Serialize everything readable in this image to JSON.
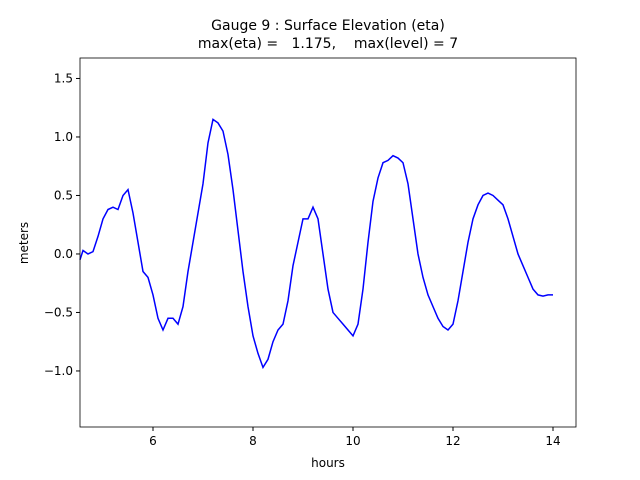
{
  "chart_data": {
    "type": "line",
    "title": "Gauge 9 : Surface Elevation (eta)",
    "subtitle": "max(eta) =   1.175,    max(level) = 7",
    "x_label": "hours",
    "y_label": "meters",
    "xlim": [
      4.54,
      14.46
    ],
    "ylim": [
      -1.479,
      1.675
    ],
    "xticks": [
      6,
      8,
      10,
      12,
      14
    ],
    "yticks": [
      {
        "value": -1.0,
        "label": "−1.0"
      },
      {
        "value": -0.5,
        "label": "−0.5"
      },
      {
        "value": 0.0,
        "label": "0.0"
      },
      {
        "value": 0.5,
        "label": "0.5"
      },
      {
        "value": 1.0,
        "label": "1.0"
      },
      {
        "value": 1.5,
        "label": "1.5"
      }
    ],
    "x": [
      4.54,
      4.6,
      4.7,
      4.8,
      4.9,
      5.0,
      5.1,
      5.2,
      5.3,
      5.4,
      5.5,
      5.6,
      5.7,
      5.8,
      5.9,
      6.0,
      6.1,
      6.2,
      6.3,
      6.4,
      6.5,
      6.6,
      6.7,
      6.8,
      6.9,
      7.0,
      7.1,
      7.2,
      7.3,
      7.4,
      7.5,
      7.6,
      7.7,
      7.8,
      7.9,
      8.0,
      8.1,
      8.2,
      8.3,
      8.4,
      8.5,
      8.6,
      8.7,
      8.8,
      8.9,
      9.0,
      9.1,
      9.2,
      9.3,
      9.4,
      9.5,
      9.6,
      9.7,
      9.8,
      9.9,
      10.0,
      10.1,
      10.2,
      10.3,
      10.4,
      10.5,
      10.6,
      10.7,
      10.8,
      10.9,
      11.0,
      11.1,
      11.2,
      11.3,
      11.4,
      11.5,
      11.6,
      11.7,
      11.8,
      11.9,
      12.0,
      12.1,
      12.2,
      12.3,
      12.4,
      12.5,
      12.6,
      12.7,
      12.8,
      12.9,
      13.0,
      13.1,
      13.2,
      13.3,
      13.4,
      13.5,
      13.6,
      13.7,
      13.8,
      13.9,
      14.0
    ],
    "series": [
      {
        "color": "#0000ff",
        "values": [
          -0.05,
          0.03,
          0.0,
          0.02,
          0.15,
          0.3,
          0.38,
          0.4,
          0.38,
          0.5,
          0.55,
          0.35,
          0.1,
          -0.15,
          -0.2,
          -0.35,
          -0.55,
          -0.65,
          -0.55,
          -0.55,
          -0.6,
          -0.45,
          -0.15,
          0.1,
          0.35,
          0.6,
          0.95,
          1.15,
          1.12,
          1.05,
          0.85,
          0.55,
          0.2,
          -0.15,
          -0.45,
          -0.7,
          -0.85,
          -0.97,
          -0.9,
          -0.75,
          -0.65,
          -0.6,
          -0.4,
          -0.1,
          0.1,
          0.3,
          0.3,
          0.4,
          0.3,
          0.0,
          -0.3,
          -0.5,
          -0.55,
          -0.6,
          -0.65,
          -0.7,
          -0.6,
          -0.3,
          0.1,
          0.45,
          0.65,
          0.78,
          0.8,
          0.84,
          0.82,
          0.78,
          0.6,
          0.3,
          0.0,
          -0.2,
          -0.35,
          -0.45,
          -0.55,
          -0.62,
          -0.65,
          -0.6,
          -0.4,
          -0.15,
          0.1,
          0.3,
          0.42,
          0.5,
          0.52,
          0.5,
          0.46,
          0.42,
          0.3,
          0.15,
          0.0,
          -0.1,
          -0.2,
          -0.3,
          -0.35,
          -0.36,
          -0.35,
          -0.35
        ]
      }
    ]
  }
}
